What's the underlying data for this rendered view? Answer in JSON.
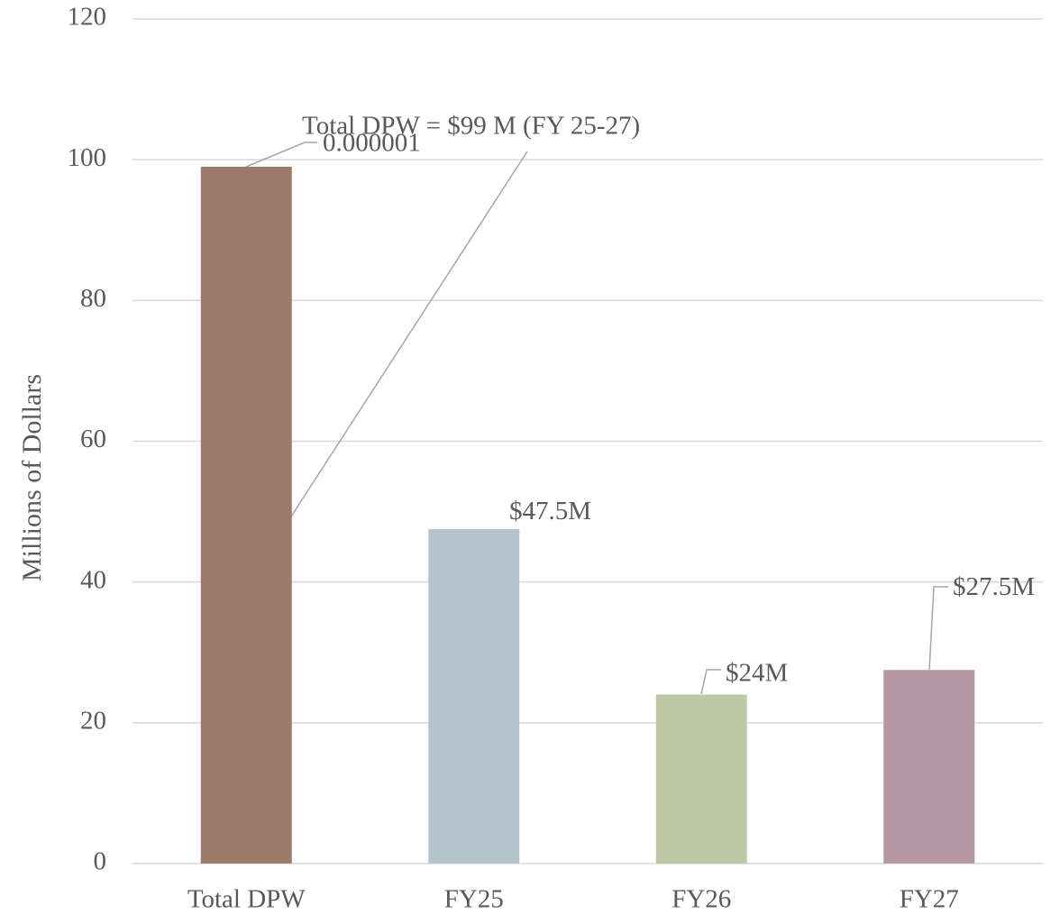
{
  "chart_data": {
    "type": "bar",
    "y_label": "Millions of Dollars",
    "categories": [
      "Total DPW",
      "FY25",
      "FY26",
      "FY27"
    ],
    "values": [
      99,
      47.5,
      24,
      27.5
    ],
    "value_labels": [
      null,
      "$47.5M",
      "$24M",
      "$27.5M"
    ],
    "colors": [
      "#9e7a6a",
      "#b5c3cd",
      "#bec8a5",
      "#b497a2"
    ],
    "annotations": [
      "Total DPW = $99 M (FY 25-27)",
      "0.000001"
    ],
    "ylim": [
      0,
      120
    ],
    "yticks": [
      0,
      20,
      40,
      60,
      80,
      100,
      120
    ],
    "grid": true
  }
}
